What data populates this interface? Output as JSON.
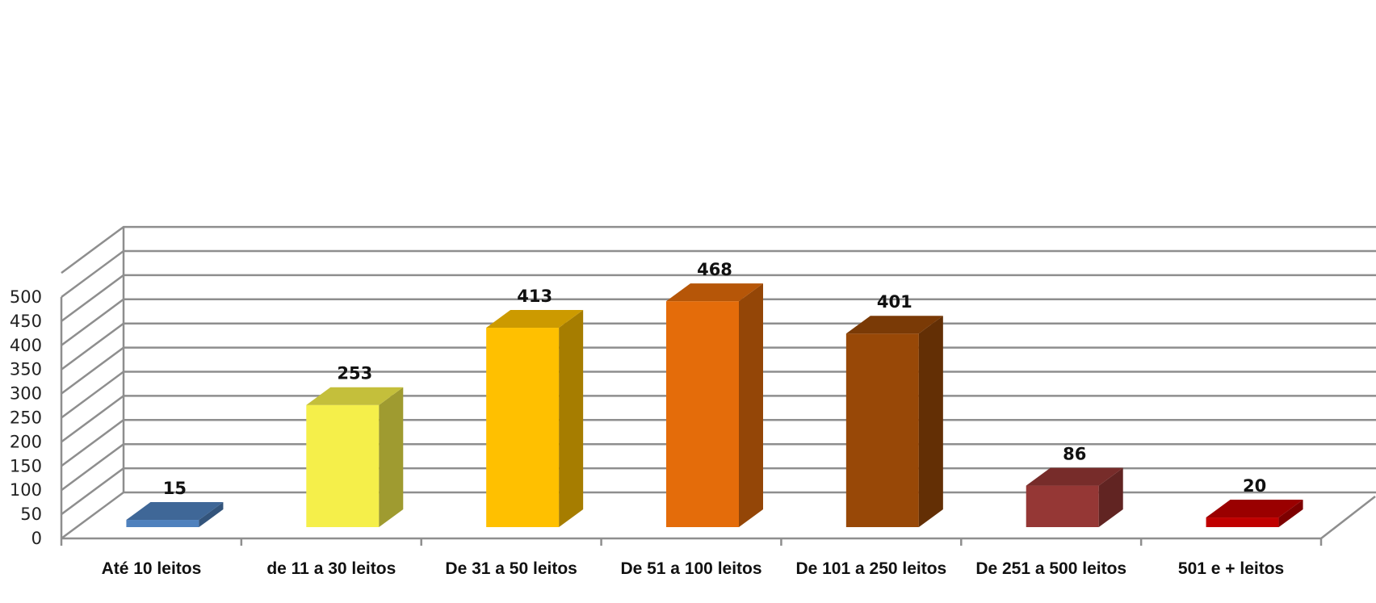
{
  "chart_data": {
    "type": "bar",
    "style": "3d-column",
    "categories": [
      "Até 10 leitos",
      "de 11 a 30 leitos",
      "De 31 a 50 leitos",
      "De 51 a 100 leitos",
      "De 101 a 250 leitos",
      "De 251 a 500 leitos",
      "501 e + leitos"
    ],
    "values": [
      15,
      253,
      413,
      468,
      401,
      86,
      20
    ],
    "data_labels": [
      "15",
      "253",
      "413",
      "468",
      "401",
      "86",
      "20"
    ],
    "colors": [
      "#4f81bd",
      "#f5ef4a",
      "#ffc000",
      "#e46c0a",
      "#984807",
      "#953735",
      "#c00000"
    ],
    "ylim": [
      0,
      500
    ],
    "yticks": [
      "0",
      "50",
      "100",
      "150",
      "200",
      "250",
      "300",
      "350",
      "400",
      "450",
      "500"
    ],
    "grid": true,
    "title": "",
    "xlabel": "",
    "ylabel": ""
  }
}
